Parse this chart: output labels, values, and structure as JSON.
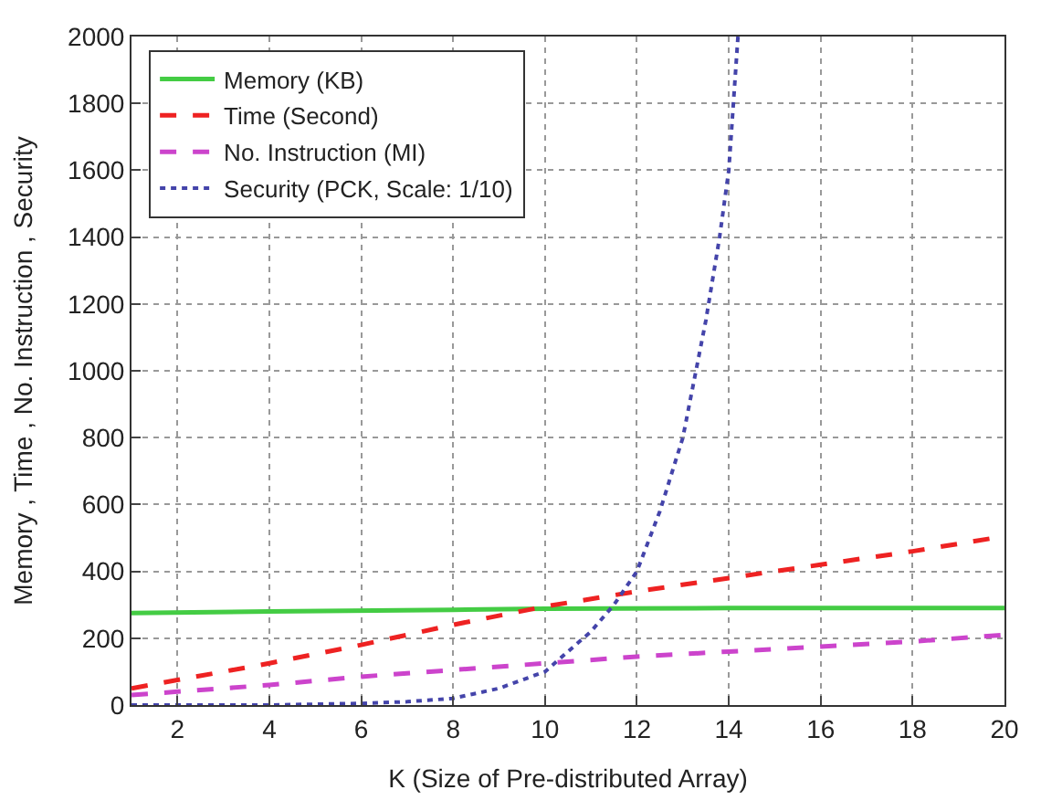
{
  "chart_data": {
    "type": "line",
    "xlabel": "K (Size of Pre-distributed Array)",
    "ylabel": "Memory , Time , No. Instruction , Security",
    "xlim": [
      1,
      20
    ],
    "xticks": [
      2,
      4,
      6,
      8,
      10,
      12,
      14,
      16,
      18,
      20
    ],
    "ylim": [
      0,
      2000
    ],
    "yticks": [
      0,
      200,
      400,
      600,
      800,
      1000,
      1200,
      1400,
      1600,
      1800,
      2000
    ],
    "grid": true,
    "legend": "top left",
    "series": [
      {
        "name": "Memory (KB)",
        "color": "#44cc44",
        "line_style": "solid",
        "x": [
          1,
          4,
          8,
          10,
          14,
          20
        ],
        "values": [
          275,
          280,
          285,
          288,
          290,
          290
        ]
      },
      {
        "name": "Time (Second)",
        "color": "#ee2222",
        "line_style": "dashed",
        "x": [
          1,
          2,
          4,
          6,
          8,
          10,
          12,
          14,
          16,
          18,
          20
        ],
        "values": [
          50,
          75,
          125,
          180,
          240,
          295,
          340,
          380,
          420,
          460,
          505
        ]
      },
      {
        "name": "No. Instruction (MI)",
        "color": "#cc44cc",
        "line_style": "dashed",
        "x": [
          1,
          2,
          4,
          6,
          8,
          10,
          12,
          14,
          16,
          18,
          20
        ],
        "values": [
          30,
          40,
          60,
          85,
          105,
          125,
          145,
          160,
          175,
          190,
          210
        ]
      },
      {
        "name": "Security (PCK, Scale: 1/10)",
        "color": "#4444aa",
        "line_style": "dotted",
        "x": [
          1,
          4,
          6,
          7,
          8,
          9,
          10,
          10.5,
          11,
          11.5,
          12,
          12.5,
          13,
          13.5,
          13.8,
          14,
          14.2
        ],
        "values": [
          0,
          0,
          5,
          10,
          20,
          50,
          100,
          160,
          220,
          300,
          400,
          580,
          800,
          1150,
          1400,
          1600,
          2000
        ]
      }
    ]
  }
}
